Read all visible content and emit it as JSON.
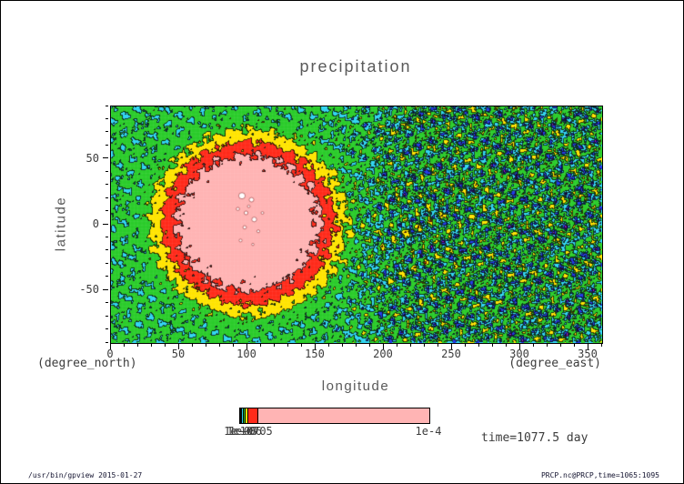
{
  "window": {
    "footer_left": "/usr/bin/gpview  2015-01-27",
    "footer_right": "PRCP.nc@PRCP,time=1065:1095"
  },
  "chart_data": {
    "type": "heatmap",
    "subtype": "filled-contour-longitude-latitude-map",
    "title": "precipitation",
    "xlabel": "longitude",
    "ylabel": "latitude",
    "x_unit_label": "(degree_east)",
    "y_unit_label": "(degree_north)",
    "annotation": "time=1077.5 day",
    "xlim": [
      0,
      360
    ],
    "ylim": [
      -90,
      90
    ],
    "x_ticks": [
      0,
      50,
      100,
      150,
      200,
      250,
      300,
      350
    ],
    "y_ticks": [
      -50,
      0,
      50
    ],
    "x_minor_step": 10,
    "y_minor_step": 10,
    "legend_position": "bottom-colorbar",
    "palette": {
      "names": [
        "purple",
        "blue",
        "cyan",
        "green",
        "yellow",
        "red",
        "pink"
      ],
      "colors": [
        "#a012d2",
        "#2038e8",
        "#2fd4f0",
        "#2acc2a",
        "#ffe400",
        "#ff2a1a",
        "#ffb4b4"
      ],
      "over": "#ffffff"
    },
    "colorbar": {
      "ticks": [
        {
          "label": "1e-08",
          "pos": 0.006
        },
        {
          "label": "1e-07",
          "pos": 0.02
        },
        {
          "label": "1e-06",
          "pos": 0.033
        },
        {
          "label": "1e-05",
          "pos": 0.09
        },
        {
          "label": "1e-4",
          "pos": 1.0
        }
      ],
      "segments": [
        {
          "color": "#a012d2",
          "w": 0.006
        },
        {
          "color": "#2038e8",
          "w": 0.006
        },
        {
          "color": "#2fd4f0",
          "w": 0.008
        },
        {
          "color": "#2acc2a",
          "w": 0.009
        },
        {
          "color": "#ffe400",
          "w": 0.013
        },
        {
          "color": "#ff2a1a",
          "w": 0.052
        },
        {
          "color": "#ffb4b4",
          "w": 0.906
        }
      ]
    },
    "field_model": {
      "description": "Filled-contour precipitation field: one broad intense maximum (pink core ringed by red, yellow, green) centered near lon 101, lat 0, with small over-scale white spots at its core; elsewhere a noisy low-value speckle of green/cyan/blue with sparse purple minima, strongest over lon 170-360.",
      "background_level_index": 3.3,
      "blob": {
        "center_lon": 101,
        "center_lat": 1,
        "radius_lon": 61,
        "radius_lat": 60,
        "peak": 3.45,
        "falloff": 0.55
      },
      "noise_amp_west": 0.5,
      "noise_amp_east": 1.2,
      "white_spots": [
        [
          96,
          22,
          2.4
        ],
        [
          103,
          19,
          1.7
        ],
        [
          99,
          9,
          1.4
        ],
        [
          105,
          4,
          1.8
        ],
        [
          98,
          -2,
          1.3
        ],
        [
          108,
          -5,
          1.1
        ],
        [
          93,
          12,
          1.2
        ],
        [
          101,
          14,
          1.0
        ],
        [
          111,
          9,
          1.0
        ],
        [
          95,
          -12,
          1.1
        ],
        [
          104,
          -15,
          0.9
        ]
      ]
    }
  }
}
